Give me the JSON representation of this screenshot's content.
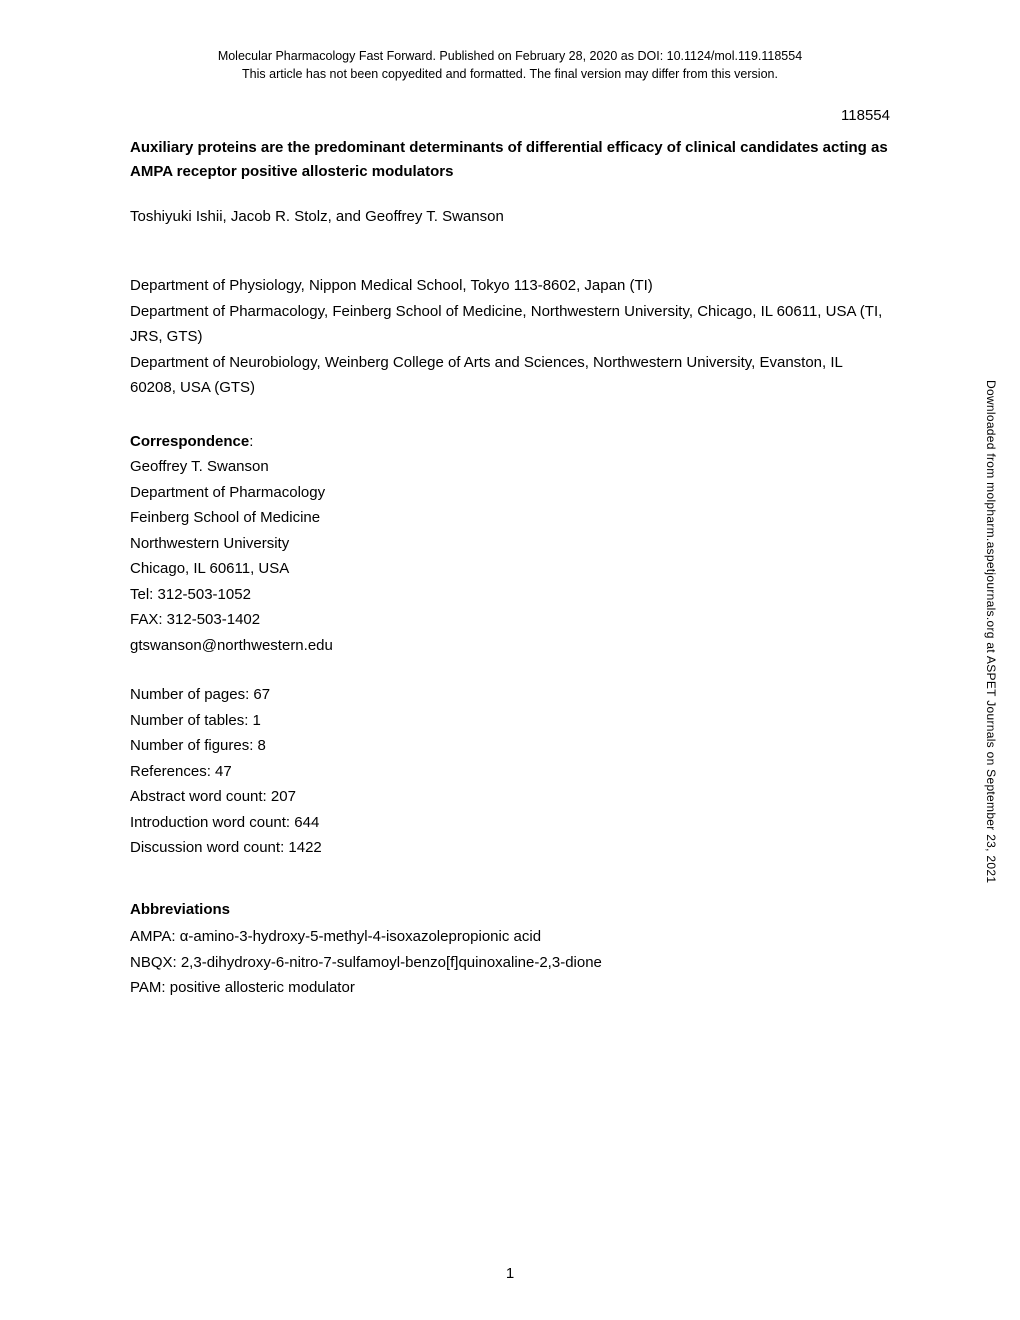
{
  "header": {
    "line1": "Molecular Pharmacology Fast Forward. Published on February 28, 2020 as DOI: 10.1124/mol.119.118554",
    "line2": "This article has not been copyedited and formatted. The final version may differ from this version."
  },
  "manuscript_number": "118554",
  "title": "Auxiliary proteins are the predominant determinants of differential efficacy of clinical candidates acting as AMPA receptor positive allosteric modulators",
  "authors": "Toshiyuki Ishii, Jacob R. Stolz, and Geoffrey T. Swanson",
  "affiliations": {
    "line1": "Department of Physiology, Nippon Medical School, Tokyo 113-8602, Japan (TI)",
    "line2": "Department of Pharmacology, Feinberg School of Medicine, Northwestern University, Chicago, IL 60611, USA (TI, JRS, GTS)",
    "line3": "Department of Neurobiology, Weinberg College of Arts and Sciences, Northwestern University, Evanston, IL 60208, USA (GTS)"
  },
  "correspondence": {
    "heading": "Correspondence",
    "name": "Geoffrey T. Swanson",
    "dept": "Department of Pharmacology",
    "school": "Feinberg School of Medicine",
    "university": "Northwestern University",
    "city": "Chicago, IL 60611, USA",
    "tel": "Tel: 312-503-1052",
    "fax": "FAX: 312-503-1402",
    "email": "gtswanson@northwestern.edu"
  },
  "counts": {
    "pages": "Number of pages: 67",
    "tables": "Number of tables: 1",
    "figures": "Number of figures: 8",
    "references": "References: 47",
    "abstract": "Abstract word count: 207",
    "introduction": "Introduction word count: 644",
    "discussion": "Discussion word count: 1422"
  },
  "abbreviations": {
    "heading": "Abbreviations",
    "ampa": "AMPA: α-amino-3-hydroxy-5-methyl-4-isoxazolepropionic acid",
    "nbqx": "NBQX: 2,3-dihydroxy-6-nitro-7-sulfamoyl-benzo[f]quinoxaline-2,3-dione",
    "pam": "PAM: positive allosteric modulator"
  },
  "page_number": "1",
  "sidebar": "Downloaded from molpharm.aspetjournals.org at ASPET Journals on September 23, 2021"
}
